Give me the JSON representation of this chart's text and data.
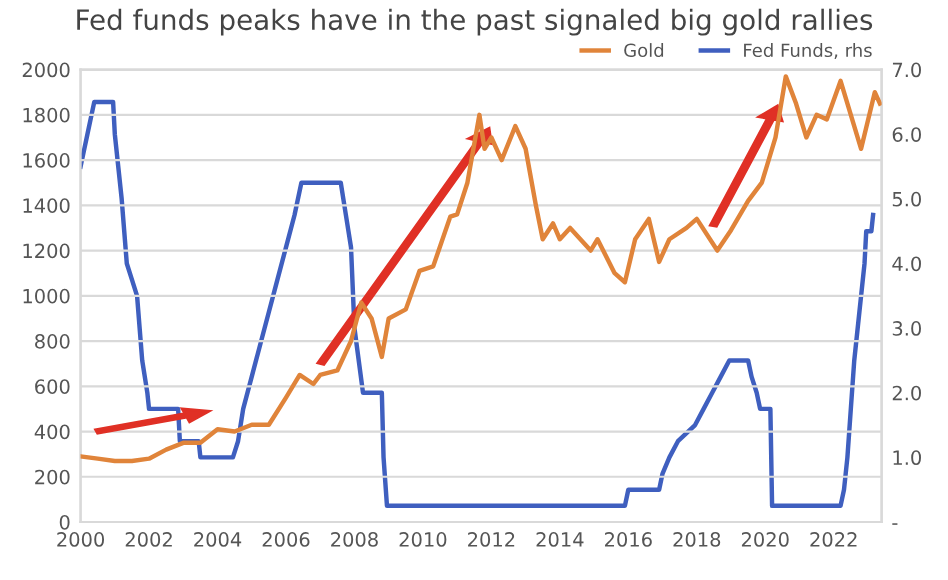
{
  "chart_data": {
    "type": "line",
    "title": "Fed funds peaks have in the past signaled big gold rallies",
    "series": [
      {
        "name": "Gold",
        "color": "#e0843a",
        "x": [
          2000.0,
          2000.5,
          2001.0,
          2001.5,
          2002.0,
          2002.5,
          2003.0,
          2003.5,
          2004.0,
          2004.5,
          2005.0,
          2005.5,
          2006.0,
          2006.4,
          2006.8,
          2007.0,
          2007.5,
          2007.9,
          2008.2,
          2008.5,
          2008.8,
          2009.0,
          2009.5,
          2009.9,
          2010.3,
          2010.8,
          2011.0,
          2011.3,
          2011.65,
          2011.8,
          2012.0,
          2012.3,
          2012.7,
          2013.0,
          2013.3,
          2013.5,
          2013.8,
          2014.0,
          2014.3,
          2014.9,
          2015.1,
          2015.6,
          2015.9,
          2016.2,
          2016.6,
          2016.9,
          2017.2,
          2017.7,
          2018.0,
          2018.6,
          2019.0,
          2019.5,
          2019.9,
          2020.3,
          2020.6,
          2020.9,
          2021.2,
          2021.5,
          2021.8,
          2022.2,
          2022.8,
          2023.2,
          2023.35
        ],
        "values": [
          290,
          280,
          270,
          270,
          280,
          320,
          350,
          350,
          410,
          400,
          430,
          430,
          550,
          650,
          610,
          650,
          670,
          800,
          970,
          900,
          730,
          900,
          940,
          1110,
          1130,
          1350,
          1360,
          1500,
          1800,
          1650,
          1700,
          1600,
          1750,
          1650,
          1400,
          1250,
          1320,
          1250,
          1300,
          1200,
          1250,
          1100,
          1060,
          1250,
          1340,
          1150,
          1250,
          1300,
          1340,
          1200,
          1290,
          1420,
          1500,
          1700,
          1970,
          1850,
          1700,
          1800,
          1780,
          1950,
          1650,
          1900,
          1850
        ]
      },
      {
        "name": "Fed Funds, rhs",
        "color": "#3f5fbf",
        "axis": "y2",
        "x": [
          2000.0,
          2000.1,
          2000.2,
          2000.4,
          2000.95,
          2001.0,
          2001.1,
          2001.2,
          2001.35,
          2001.5,
          2001.65,
          2001.8,
          2001.95,
          2002.0,
          2002.85,
          2002.9,
          2003.45,
          2003.5,
          2004.45,
          2004.6,
          2004.75,
          2005.0,
          2005.25,
          2005.5,
          2005.75,
          2006.0,
          2006.25,
          2006.45,
          2007.6,
          2007.75,
          2007.9,
          2008.0,
          2008.25,
          2008.8,
          2008.85,
          2008.95,
          2015.9,
          2016.0,
          2016.9,
          2017.0,
          2017.2,
          2017.45,
          2017.95,
          2018.2,
          2018.45,
          2018.7,
          2018.95,
          2019.5,
          2019.6,
          2019.75,
          2019.85,
          2020.15,
          2020.2,
          2022.2,
          2022.3,
          2022.4,
          2022.5,
          2022.6,
          2022.75,
          2022.9,
          2022.95,
          2023.1,
          2023.15
        ],
        "values": [
          5.5,
          5.75,
          6.0,
          6.5,
          6.5,
          6.0,
          5.5,
          5.0,
          4.0,
          3.75,
          3.5,
          2.5,
          2.0,
          1.75,
          1.75,
          1.25,
          1.25,
          1.0,
          1.0,
          1.25,
          1.75,
          2.25,
          2.75,
          3.25,
          3.75,
          4.25,
          4.75,
          5.25,
          5.25,
          4.75,
          4.25,
          3.0,
          2.0,
          2.0,
          1.0,
          0.25,
          0.25,
          0.5,
          0.5,
          0.75,
          1.0,
          1.25,
          1.5,
          1.75,
          2.0,
          2.25,
          2.5,
          2.5,
          2.25,
          2.0,
          1.75,
          1.75,
          0.25,
          0.25,
          0.5,
          1.0,
          1.75,
          2.5,
          3.25,
          4.0,
          4.5,
          4.5,
          4.75
        ]
      }
    ],
    "xlim": [
      2000,
      2023.4
    ],
    "xticks": [
      2000,
      2002,
      2004,
      2006,
      2008,
      2010,
      2012,
      2014,
      2016,
      2018,
      2020,
      2022
    ],
    "ylim": [
      0,
      2000
    ],
    "yticks": [
      0,
      200,
      400,
      600,
      800,
      1000,
      1200,
      1400,
      1600,
      1800,
      2000
    ],
    "y2lim": [
      0,
      7
    ],
    "y2ticks": [
      {
        "value": 0,
        "label": "-"
      },
      {
        "value": 1,
        "label": "1.0"
      },
      {
        "value": 2,
        "label": "2.0"
      },
      {
        "value": 3,
        "label": "3.0"
      },
      {
        "value": 4,
        "label": "4.0"
      },
      {
        "value": 5,
        "label": "5.0"
      },
      {
        "value": 6,
        "label": "6.0"
      },
      {
        "value": 7,
        "label": "7.0"
      }
    ],
    "grid": "y",
    "legend": "top right",
    "marker": "none",
    "line_style": "solid"
  }
}
